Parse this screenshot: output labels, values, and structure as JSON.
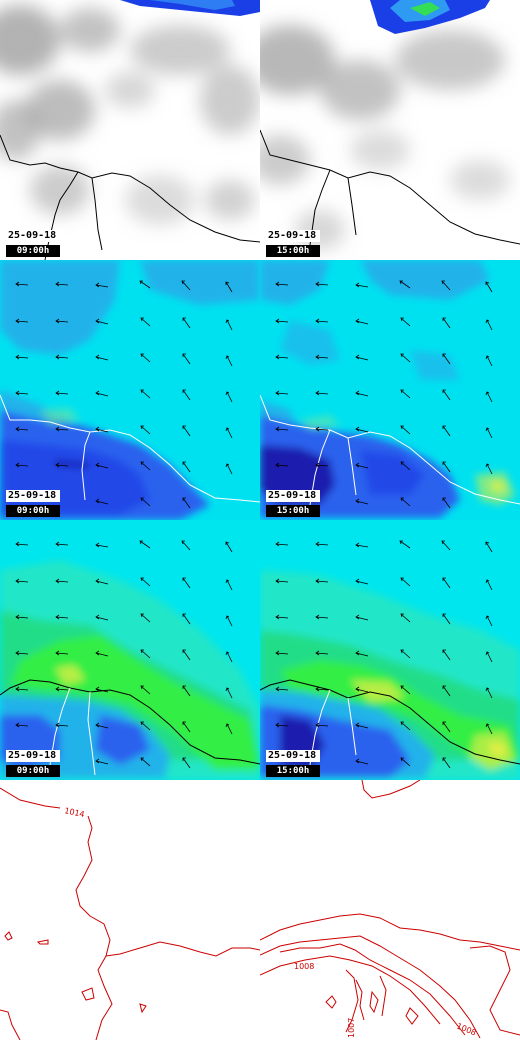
{
  "colors": {
    "coastline_on_clouds": "#000000",
    "coastline_on_fields": "#ffffff",
    "isobar": "#cc0000",
    "field_low": "#2255ee",
    "field_mid": "#00ddee",
    "field_high": "#33ee66",
    "field_peak": "#ccee33"
  },
  "rows": [
    {
      "name": "cloud-cover",
      "panels": [
        {
          "date": "25-09-18",
          "time": "09:00h"
        },
        {
          "date": "25-09-18",
          "time": "15:00h"
        }
      ]
    },
    {
      "name": "wind-field-upper",
      "panels": [
        {
          "date": "25-09-18",
          "time": "09:00h"
        },
        {
          "date": "25-09-18",
          "time": "15:00h"
        }
      ]
    },
    {
      "name": "wind-field-lower",
      "panels": [
        {
          "date": "25-09-18",
          "time": "09:00h"
        },
        {
          "date": "25-09-18",
          "time": "15:00h"
        }
      ]
    },
    {
      "name": "pressure",
      "panels": [
        {
          "isobar_labels": [
            "1014"
          ]
        },
        {
          "isobar_labels": [
            "1008",
            "1007",
            "1008"
          ]
        }
      ]
    }
  ]
}
